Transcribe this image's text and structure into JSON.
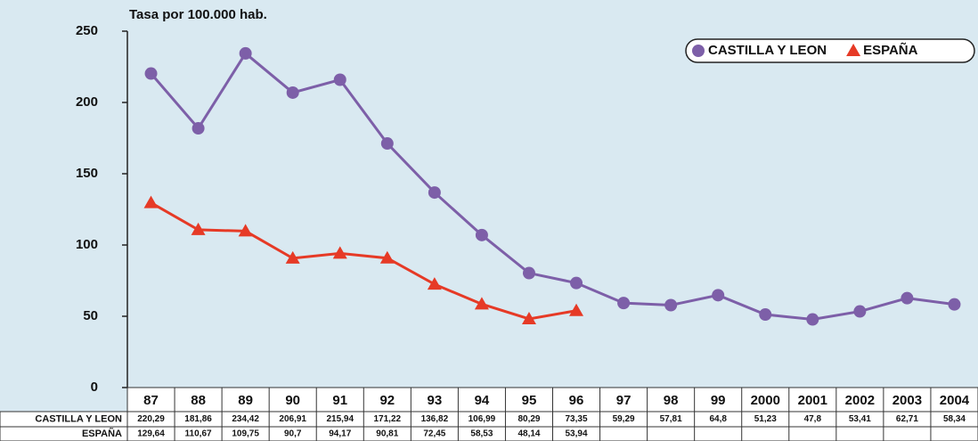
{
  "chart_data": {
    "type": "line",
    "subtitle": "Tasa por 100.000 hab.",
    "categories": [
      "87",
      "88",
      "89",
      "90",
      "91",
      "92",
      "93",
      "94",
      "95",
      "96",
      "97",
      "98",
      "99",
      "2000",
      "2001",
      "2002",
      "2003",
      "2004"
    ],
    "series": [
      {
        "name": "CASTILLA Y LEON",
        "color": "#7d5fa8",
        "marker": "circle",
        "values": [
          220.29,
          181.86,
          234.42,
          206.91,
          215.94,
          171.22,
          136.82,
          106.99,
          80.29,
          73.35,
          59.29,
          57.81,
          64.8,
          51.23,
          47.8,
          53.41,
          62.71,
          58.34
        ],
        "value_labels": [
          "220,29",
          "181,86",
          "234,42",
          "206,91",
          "215,94",
          "171,22",
          "136,82",
          "106,99",
          "80,29",
          "73,35",
          "59,29",
          "57,81",
          "64,8",
          "51,23",
          "47,8",
          "53,41",
          "62,71",
          "58,34"
        ]
      },
      {
        "name": "ESPAÑA",
        "color": "#e63a26",
        "marker": "triangle",
        "values": [
          129.64,
          110.67,
          109.75,
          90.7,
          94.17,
          90.81,
          72.45,
          58.53,
          48.14,
          53.94,
          null,
          null,
          null,
          null,
          null,
          null,
          null,
          null
        ],
        "value_labels": [
          "129,64",
          "110,67",
          "109,75",
          "90,7",
          "94,17",
          "90,81",
          "72,45",
          "58,53",
          "48,14",
          "53,94",
          null,
          null,
          null,
          null,
          null,
          null,
          null,
          null
        ]
      }
    ],
    "ylim": [
      0,
      250
    ],
    "yticks": [
      0,
      50,
      100,
      150,
      200,
      250
    ],
    "legend": "top-right"
  }
}
